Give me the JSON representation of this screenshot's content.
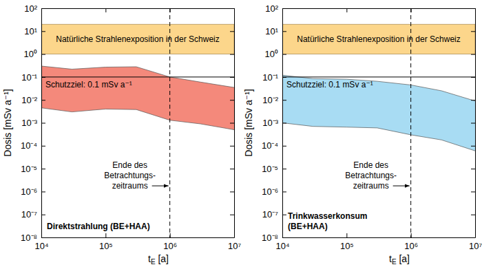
{
  "chart_data": [
    {
      "type": "area",
      "x_label": [
        "t",
        "E",
        " [a]"
      ],
      "y_label": "Dosis [mSv a⁻¹]",
      "log": true,
      "xlim": [
        10000,
        10000000
      ],
      "ylim": [
        1e-08,
        100
      ],
      "xticks": [
        {
          "value": 10000,
          "label": "10⁴"
        },
        {
          "value": 100000,
          "label": "10⁵"
        },
        {
          "value": 1000000,
          "label": "10⁶"
        },
        {
          "value": 10000000,
          "label": "10⁷"
        }
      ],
      "yticks": [
        {
          "value": 1e-08,
          "label": "10⁻⁸"
        },
        {
          "value": 1e-07,
          "label": "10⁻⁷"
        },
        {
          "value": 1e-06,
          "label": "10⁻⁶"
        },
        {
          "value": 1e-05,
          "label": "10⁻⁵"
        },
        {
          "value": 0.0001,
          "label": "10⁻⁴"
        },
        {
          "value": 0.001,
          "label": "10⁻³"
        },
        {
          "value": 0.01,
          "label": "10⁻²"
        },
        {
          "value": 0.1,
          "label": "10⁻¹"
        },
        {
          "value": 1,
          "label": "10⁰"
        },
        {
          "value": 10,
          "label": "10¹"
        },
        {
          "value": 100,
          "label": "10²"
        }
      ],
      "x": [
        10000,
        30000,
        100000,
        300000,
        1000000,
        3000000,
        10000000
      ],
      "series": [
        {
          "label": [
            "Direktstrahlung (BE+HAA)"
          ],
          "color": "#f4897b",
          "values": [
            0.3,
            0.22,
            0.27,
            0.28,
            0.1,
            0.06,
            0.035
          ],
          "lower": [
            0.0045,
            0.003,
            0.004,
            0.0038,
            0.0013,
            0.0009,
            0.0005
          ]
        }
      ],
      "bands": [
        {
          "text": "Natürliche Strahlenexposition in der Schweiz",
          "range": [
            1,
            20
          ],
          "color": "#fcd68b"
        }
      ],
      "hlines": [
        {
          "text": "Schutzziel: 0.1 mSv a⁻¹",
          "value": 0.1
        }
      ],
      "vlines": [
        {
          "text": [
            "Ende des",
            "Betrachtungs-",
            "zeitraums"
          ],
          "value": 1000000,
          "line_style": "dashed"
        }
      ]
    },
    {
      "type": "area",
      "x_label": [
        "t",
        "E",
        " [a]"
      ],
      "y_label": "Dosis [mSv a⁻¹]",
      "log": true,
      "xlim": [
        10000,
        10000000
      ],
      "ylim": [
        1e-08,
        100
      ],
      "xticks": [
        {
          "value": 10000,
          "label": "10⁴"
        },
        {
          "value": 100000,
          "label": "10⁵"
        },
        {
          "value": 1000000,
          "label": "10⁶"
        },
        {
          "value": 10000000,
          "label": "10⁷"
        }
      ],
      "yticks": [
        {
          "value": 1e-08,
          "label": "10⁻⁸"
        },
        {
          "value": 1e-07,
          "label": "10⁻⁷"
        },
        {
          "value": 1e-06,
          "label": "10⁻⁶"
        },
        {
          "value": 1e-05,
          "label": "10⁻⁵"
        },
        {
          "value": 0.0001,
          "label": "10⁻⁴"
        },
        {
          "value": 0.001,
          "label": "10⁻³"
        },
        {
          "value": 0.01,
          "label": "10⁻²"
        },
        {
          "value": 0.1,
          "label": "10⁻¹"
        },
        {
          "value": 1,
          "label": "10⁰"
        },
        {
          "value": 10,
          "label": "10¹"
        },
        {
          "value": 100,
          "label": "10²"
        }
      ],
      "x": [
        10000,
        30000,
        100000,
        300000,
        1000000,
        3000000,
        10000000
      ],
      "series": [
        {
          "label": [
            "Trinkwasserkonsum",
            "(BE+HAA)"
          ],
          "color": "#a8dcf3",
          "values": [
            0.12,
            0.085,
            0.08,
            0.065,
            0.045,
            0.025,
            0.009
          ],
          "lower": [
            0.001,
            0.0007,
            0.00065,
            0.0006,
            0.0003,
            0.00018,
            6e-05
          ]
        }
      ],
      "bands": [
        {
          "text": "Natürliche Strahlenexposition in der Schweiz",
          "range": [
            1,
            20
          ],
          "color": "#fcd68b"
        }
      ],
      "hlines": [
        {
          "text": "Schutzziel: 0.1 mSv a⁻¹",
          "value": 0.1
        }
      ],
      "vlines": [
        {
          "text": [
            "Ende des",
            "Betrachtungs-",
            "zeitraums"
          ],
          "value": 1000000,
          "line_style": "dashed"
        }
      ]
    }
  ]
}
